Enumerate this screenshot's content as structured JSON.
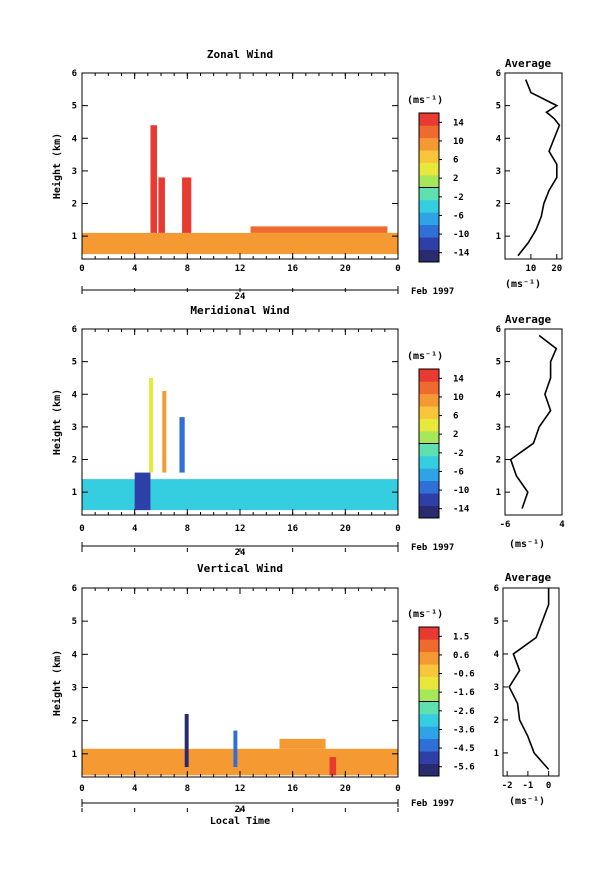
{
  "chart_data": [
    {
      "type": "heatmap",
      "title": "Zonal Wind",
      "ylabel": "Height (km)",
      "date_label": "Feb 1997",
      "day_label": "24",
      "xlim": [
        0,
        24
      ],
      "ylim": [
        0.3,
        6
      ],
      "x_ticks": [
        "0",
        "4",
        "8",
        "12",
        "16",
        "20",
        "0"
      ],
      "y_ticks": [
        "1",
        "2",
        "3",
        "4",
        "5",
        "6"
      ],
      "colorbar": {
        "unit": "(ms⁻¹)",
        "range": [
          -16,
          16
        ],
        "ticks": [
          "14",
          "10",
          "6",
          "2",
          "-2",
          "-6",
          "-10",
          "-14"
        ]
      },
      "regions": [
        {
          "x0": 0,
          "x1": 24,
          "y0": 0.45,
          "y1": 1.1,
          "value": 9
        },
        {
          "x0": 5.2,
          "x1": 5.7,
          "y0": 1.1,
          "y1": 4.4,
          "value": 15
        },
        {
          "x0": 5.8,
          "x1": 6.3,
          "y0": 1.1,
          "y1": 2.8,
          "value": 14
        },
        {
          "x0": 7.6,
          "x1": 8.3,
          "y0": 1.1,
          "y1": 2.8,
          "value": 15
        },
        {
          "x0": 12.8,
          "x1": 23.2,
          "y0": 1.1,
          "y1": 1.3,
          "value": 12
        }
      ],
      "average_profile": {
        "title": "Average",
        "xlabel": "(ms⁻¹)",
        "xlim": [
          0,
          22
        ],
        "x_ticks": [
          "10",
          "20"
        ],
        "height": [
          0.4,
          0.8,
          1.2,
          1.6,
          2.0,
          2.4,
          2.8,
          3.2,
          3.6,
          4.0,
          4.4,
          4.6,
          4.8,
          5.0,
          5.4,
          5.8
        ],
        "speed": [
          5,
          9,
          12,
          14,
          15,
          17,
          20,
          20,
          17,
          19,
          21,
          19,
          16,
          20,
          10,
          8
        ]
      }
    },
    {
      "type": "heatmap",
      "title": "Meridional Wind",
      "ylabel": "Height (km)",
      "date_label": "Feb 1997",
      "day_label": "24",
      "xlim": [
        0,
        24
      ],
      "ylim": [
        0.3,
        6
      ],
      "x_ticks": [
        "0",
        "4",
        "8",
        "12",
        "16",
        "20",
        "0"
      ],
      "y_ticks": [
        "1",
        "2",
        "3",
        "4",
        "5",
        "6"
      ],
      "colorbar": {
        "unit": "(ms⁻¹)",
        "range": [
          -16,
          16
        ],
        "ticks": [
          "14",
          "10",
          "6",
          "2",
          "-2",
          "-6",
          "-10",
          "-14"
        ]
      },
      "regions": [
        {
          "x0": 0,
          "x1": 24,
          "y0": 0.45,
          "y1": 1.4,
          "value": -4
        },
        {
          "x0": 4.0,
          "x1": 5.2,
          "y0": 0.45,
          "y1": 1.6,
          "value": -12
        },
        {
          "x0": 5.1,
          "x1": 5.4,
          "y0": 1.6,
          "y1": 4.5,
          "value": 5
        },
        {
          "x0": 6.1,
          "x1": 6.4,
          "y0": 1.6,
          "y1": 4.1,
          "value": 8
        },
        {
          "x0": 7.4,
          "x1": 7.8,
          "y0": 1.6,
          "y1": 3.3,
          "value": -9
        }
      ],
      "average_profile": {
        "title": "Average",
        "xlabel": "(ms⁻¹)",
        "xlim": [
          -6,
          4
        ],
        "x_ticks": [
          "-6",
          "4"
        ],
        "height": [
          0.5,
          1.0,
          1.5,
          2.0,
          2.5,
          3.0,
          3.5,
          4.0,
          4.5,
          5.0,
          5.4,
          5.8
        ],
        "speed": [
          -3,
          -2,
          -4,
          -5,
          -1,
          0,
          2,
          1,
          2,
          2,
          3,
          0
        ]
      }
    },
    {
      "type": "heatmap",
      "title": "Vertical Wind",
      "ylabel": "Height (km)",
      "xlabel": "Local Time",
      "date_label": "Feb 1997",
      "day_label": "24",
      "xlim": [
        0,
        24
      ],
      "ylim": [
        0.3,
        6
      ],
      "x_ticks": [
        "0",
        "4",
        "8",
        "12",
        "16",
        "20",
        "0"
      ],
      "y_ticks": [
        "1",
        "2",
        "3",
        "4",
        "5",
        "6"
      ],
      "colorbar": {
        "unit": "(ms⁻¹)",
        "range": [
          -6.1,
          2.0
        ],
        "ticks": [
          "1.5",
          "0.6",
          "-0.6",
          "-1.6",
          "-2.6",
          "-3.6",
          "-4.5",
          "-5.6"
        ]
      },
      "regions": [
        {
          "x0": 0,
          "x1": 24,
          "y0": 0.35,
          "y1": 1.15,
          "value": 0.4
        },
        {
          "x0": 15.0,
          "x1": 18.5,
          "y0": 1.15,
          "y1": 1.45,
          "value": 0.6
        },
        {
          "x0": 7.8,
          "x1": 8.1,
          "y0": 0.6,
          "y1": 2.2,
          "value": -5.6
        },
        {
          "x0": 11.5,
          "x1": 11.8,
          "y0": 0.6,
          "y1": 1.7,
          "value": -4.5
        },
        {
          "x0": 18.8,
          "x1": 19.3,
          "y0": 0.35,
          "y1": 0.9,
          "value": 1.5
        }
      ],
      "average_profile": {
        "title": "Average",
        "xlabel": "(ms⁻¹)",
        "xlim": [
          -2.2,
          0.5
        ],
        "x_ticks": [
          "-2",
          "-1",
          "0"
        ],
        "height": [
          0.5,
          1.0,
          1.5,
          2.0,
          2.5,
          3.0,
          3.5,
          4.0,
          4.5,
          5.0,
          5.5,
          6.0
        ],
        "speed": [
          0,
          -0.7,
          -1.0,
          -1.4,
          -1.5,
          -1.9,
          -1.4,
          -1.7,
          -0.6,
          -0.3,
          0,
          0
        ]
      }
    }
  ]
}
